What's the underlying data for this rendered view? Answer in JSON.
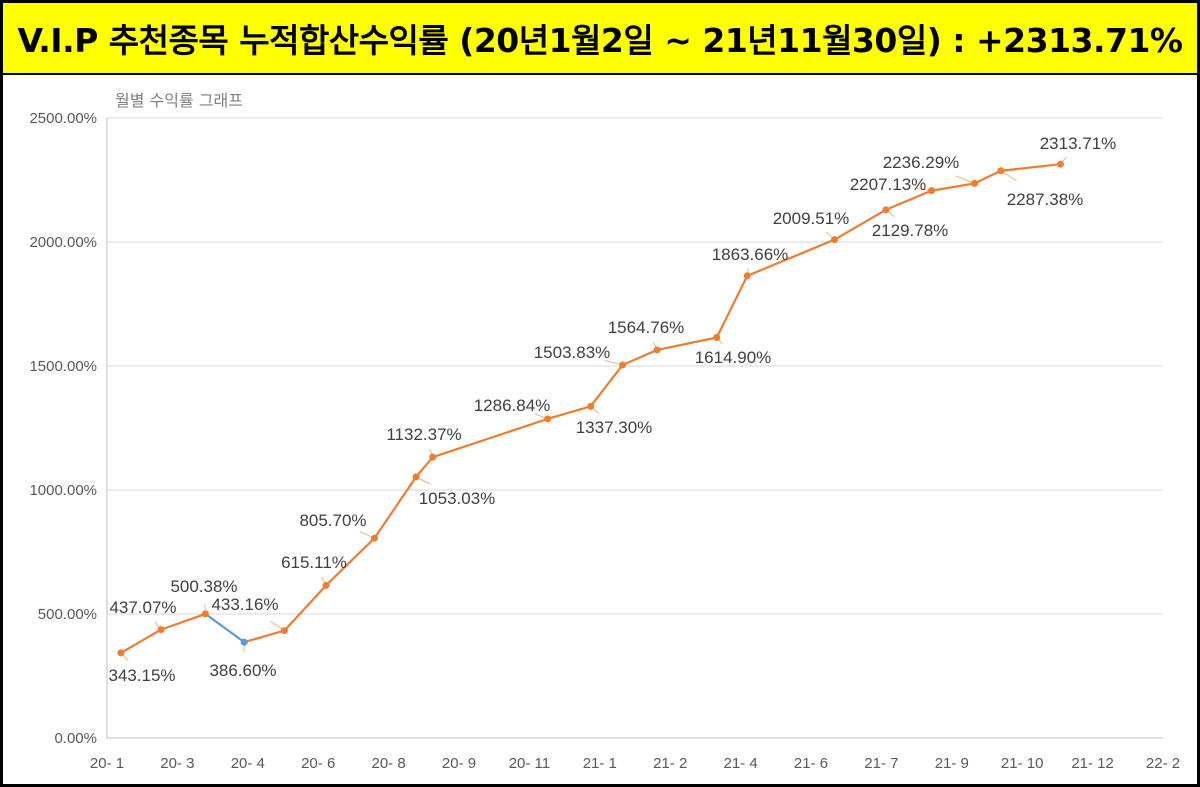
{
  "header": {
    "title": "V.I.P 추천종목 누적합산수익률 (20년1월2일 ~ 21년11월30일) : +2313.71%"
  },
  "chart_data": {
    "type": "line",
    "title": "월별 수익률 그래프",
    "xlabel": "",
    "ylabel": "",
    "ylim": [
      0,
      2500
    ],
    "yticks": [
      "0.00%",
      "500.00%",
      "1000.00%",
      "1500.00%",
      "2000.00%",
      "2500.00%"
    ],
    "xticks": [
      "20- 1",
      "20- 3",
      "20- 4",
      "20- 6",
      "20- 8",
      "20- 9",
      "20- 11",
      "21- 1",
      "21- 2",
      "21- 4",
      "21- 6",
      "21- 7",
      "21- 9",
      "21- 10",
      "21- 12",
      "22- 2"
    ],
    "xlim": [
      "2020-01-01",
      "2022-02-01"
    ],
    "grid": true,
    "colors": {
      "line": "#ed7d31",
      "decline_segment": "#5b9bd5",
      "grid": "#d9d9d9",
      "title_bg": "#ffff00"
    },
    "x": [
      "2020-01-11",
      "2020-02-09",
      "2020-03-12",
      "2020-04-09",
      "2020-05-08",
      "2020-06-07",
      "2020-07-12",
      "2020-08-11",
      "2020-08-23",
      "2020-11-14",
      "2020-12-15",
      "2021-01-07",
      "2021-02-01",
      "2021-03-16",
      "2021-04-07",
      "2021-06-09",
      "2021-07-16",
      "2021-08-18",
      "2021-09-18",
      "2021-10-07",
      "2021-11-19"
    ],
    "values": [
      343.15,
      437.07,
      500.38,
      386.6,
      433.16,
      615.11,
      805.7,
      1053.03,
      1132.37,
      1286.84,
      1337.3,
      1503.83,
      1564.76,
      1614.9,
      1863.66,
      2009.51,
      2129.78,
      2207.13,
      2236.29,
      2287.38,
      2313.71
    ],
    "labels": [
      "343.15%",
      "437.07%",
      "500.38%",
      "386.60%",
      "433.16%",
      "615.11%",
      "805.70%",
      "1053.03%",
      "1132.37%",
      "1286.84%",
      "1337.30%",
      "1503.83%",
      "1564.76%",
      "1614.90%",
      "1863.66%",
      "2009.51%",
      "2129.78%",
      "2207.13%",
      "2236.29%",
      "2287.38%",
      "2313.71%"
    ]
  }
}
